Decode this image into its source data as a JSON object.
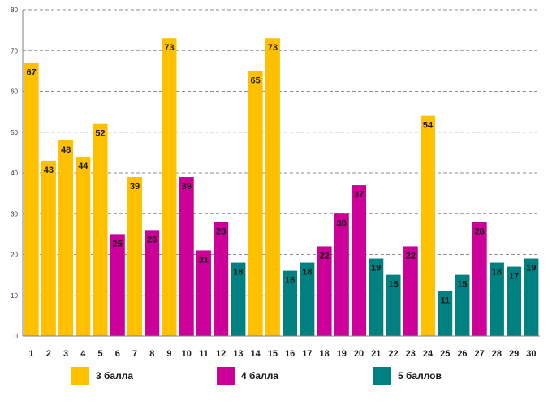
{
  "chart_data": {
    "type": "bar",
    "title": "",
    "xlabel": "",
    "ylabel": "",
    "ylim": [
      0,
      80
    ],
    "yticks": [
      0,
      10,
      20,
      30,
      40,
      50,
      60,
      70,
      80
    ],
    "grid": true,
    "categories": [
      "1",
      "2",
      "3",
      "4",
      "5",
      "6",
      "7",
      "8",
      "9",
      "10",
      "11",
      "12",
      "13",
      "14",
      "15",
      "16",
      "17",
      "18",
      "19",
      "20",
      "21",
      "22",
      "23",
      "24",
      "25",
      "26",
      "27",
      "28",
      "29",
      "30"
    ],
    "values": [
      67,
      43,
      48,
      44,
      52,
      25,
      39,
      26,
      73,
      39,
      21,
      28,
      18,
      65,
      73,
      16,
      18,
      22,
      30,
      37,
      19,
      15,
      22,
      54,
      11,
      15,
      28,
      18,
      17,
      19
    ],
    "groups": [
      "g3",
      "g3",
      "g3",
      "g3",
      "g3",
      "g4",
      "g3",
      "g4",
      "g3",
      "g4",
      "g4",
      "g4",
      "g5",
      "g3",
      "g3",
      "g5",
      "g5",
      "g4",
      "g4",
      "g4",
      "g5",
      "g5",
      "g4",
      "g3",
      "g5",
      "g5",
      "g4",
      "g5",
      "g5",
      "g5"
    ],
    "legend": [
      {
        "key": "g3",
        "label": "3 балла",
        "color": "#FFC000"
      },
      {
        "key": "g4",
        "label": "4 балла",
        "color": "#CC0099"
      },
      {
        "key": "g5",
        "label": "5 баллов",
        "color": "#008080"
      }
    ],
    "legend_position": "bottom"
  }
}
